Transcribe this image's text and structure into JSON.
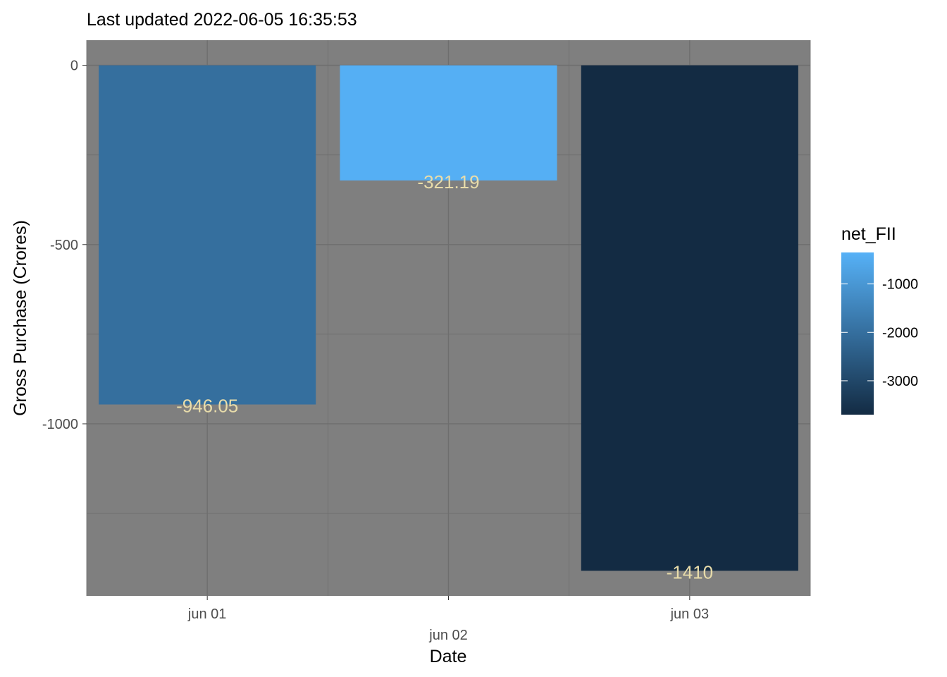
{
  "chart_data": {
    "type": "bar",
    "title": "Last updated 2022-06-05 16:35:53",
    "xlabel": "Date",
    "ylabel": "Gross Purchase (Crores)",
    "categories": [
      "jun 01",
      "jun 02",
      "jun 03"
    ],
    "values": [
      -946.05,
      -321.19,
      -1410
    ],
    "value_labels": [
      "-946.05",
      "-321.19",
      "-1410"
    ],
    "fill_values": [
      -2000,
      -400,
      -3700
    ],
    "ylim": [
      -1480,
      70
    ],
    "y_ticks": [
      0,
      -500,
      -1000
    ],
    "y_tick_labels": [
      "0",
      "-500",
      "-1000"
    ],
    "x_ticks": [
      {
        "label": "jun 01",
        "category": "jun 01",
        "row": 0
      },
      {
        "label": "jun 02",
        "category": "jun 02",
        "row": 1
      },
      {
        "label": "jun 03",
        "category": "jun 03",
        "row": 0
      }
    ],
    "grid": true,
    "panel_color": "#7f7f7f",
    "grid_color": "#6e6e6e",
    "label_color": "#e8dcaa",
    "legend": {
      "title": "net_FII",
      "position": "right",
      "range": [
        -3700,
        -350
      ],
      "gradient_low": "#132b43",
      "gradient_high": "#56b1f7",
      "ticks": [
        -1000,
        -2000,
        -3000
      ],
      "tick_labels": [
        "-1000",
        "-2000",
        "-3000"
      ]
    }
  }
}
